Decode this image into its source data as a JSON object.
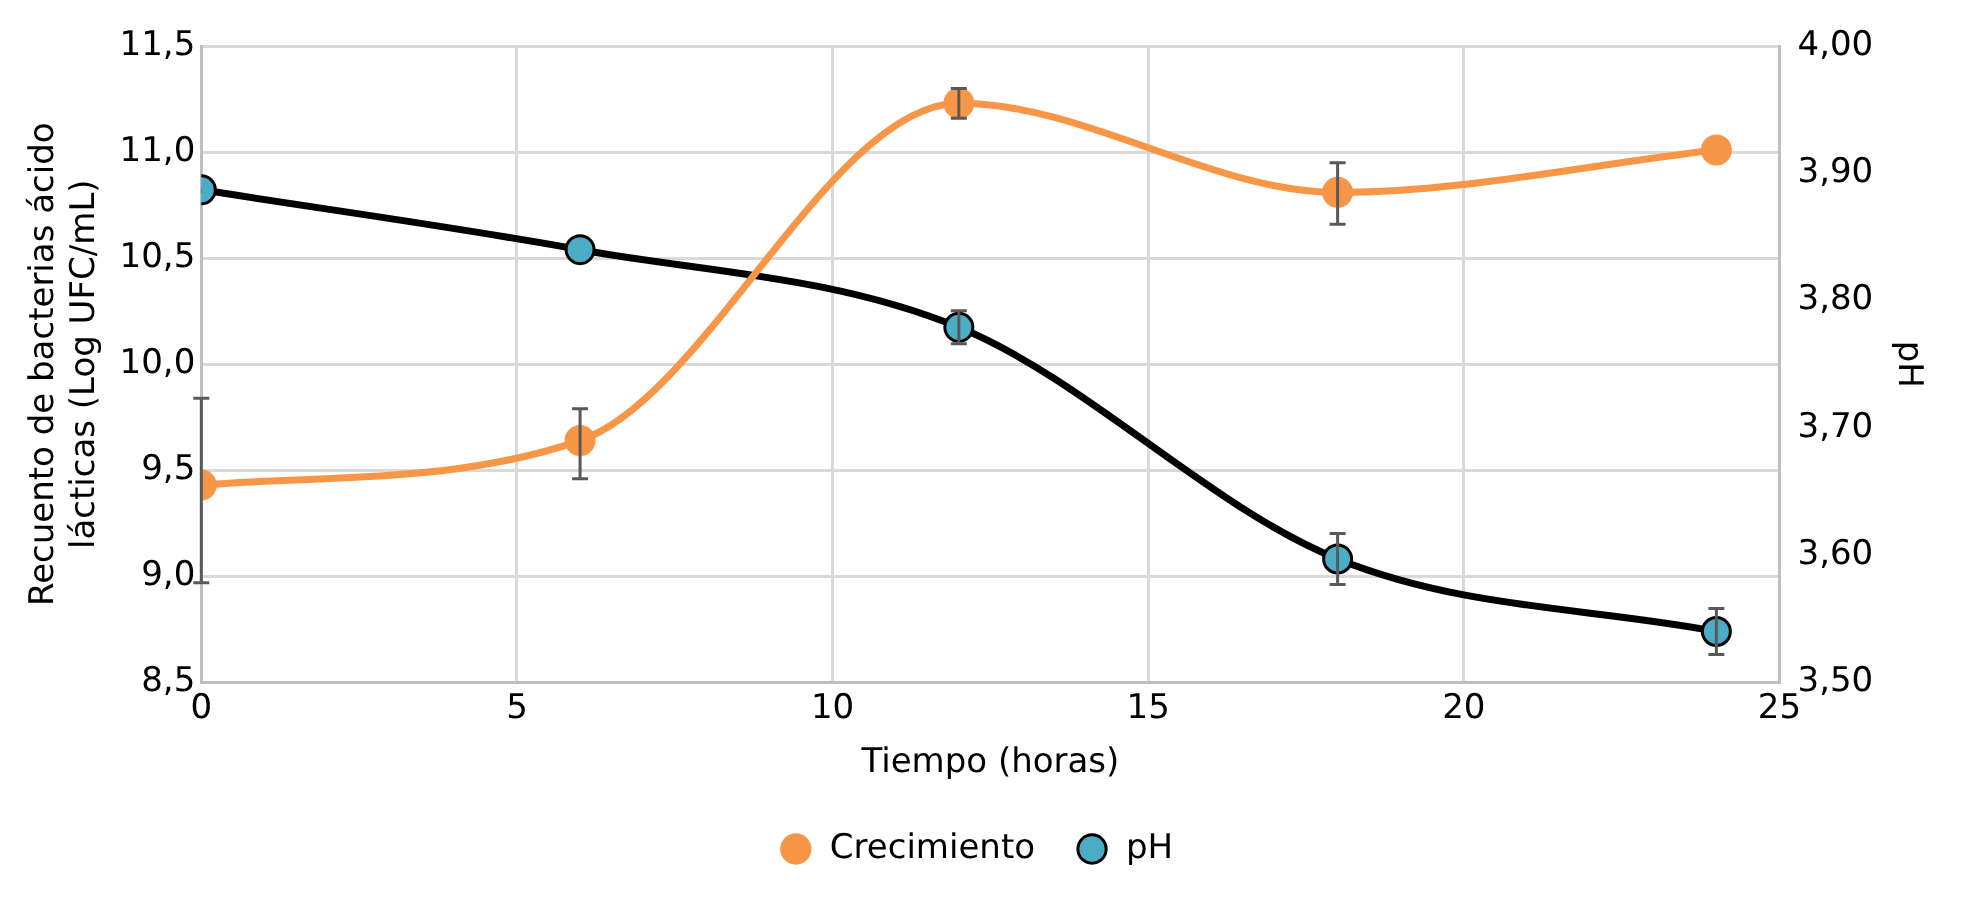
{
  "chart_data": {
    "type": "line",
    "xlabel": "Tiempo (horas)",
    "ylabel": "Recuento de bacterias ácido lácticas (Log UFC/mL)",
    "y2label": "pH",
    "x": [
      0,
      6,
      12,
      18,
      24
    ],
    "series": [
      {
        "name": "Crecimiento",
        "color": "#f79646",
        "values": [
          9.43,
          9.64,
          11.23,
          10.81,
          11.01
        ],
        "errors": [
          [
            8.97,
            9.84
          ],
          [
            9.46,
            9.79
          ],
          [
            11.16,
            11.3
          ],
          [
            10.66,
            10.95
          ],
          null
        ]
      },
      {
        "name": "pH",
        "color": "#4bacc6",
        "axis": "y2",
        "values": [
          3.887,
          3.84,
          3.779,
          3.597,
          3.54
        ],
        "errors": [
          null,
          null,
          [
            3.766,
            3.792
          ],
          [
            3.577,
            3.617
          ],
          [
            3.522,
            3.558
          ]
        ]
      }
    ],
    "xlim": [
      0,
      25
    ],
    "xticks": [
      0,
      5,
      10,
      15,
      20,
      25
    ],
    "ylim": [
      8.5,
      11.5
    ],
    "yticks": [
      {
        "value": 8.5,
        "label": "8,5"
      },
      {
        "value": 9,
        "label": "9,0"
      },
      {
        "value": 9.5,
        "label": "9,5"
      },
      {
        "value": 10,
        "label": "10,0"
      },
      {
        "value": 10.5,
        "label": "10,5"
      },
      {
        "value": 11,
        "label": "11,0"
      },
      {
        "value": 11.5,
        "label": "11,5"
      }
    ],
    "y2lim": [
      3.5,
      4
    ],
    "y2ticks": [
      {
        "value": 3.5,
        "label": "3,50"
      },
      {
        "value": 3.6,
        "label": "3,60"
      },
      {
        "value": 3.7,
        "label": "3,70"
      },
      {
        "value": 3.8,
        "label": "3,80"
      },
      {
        "value": 3.9,
        "label": "3,90"
      },
      {
        "value": 4,
        "label": "4,00"
      }
    ],
    "grid": true,
    "legend": "bottom",
    "marker": "circle",
    "line_style": "solid"
  }
}
